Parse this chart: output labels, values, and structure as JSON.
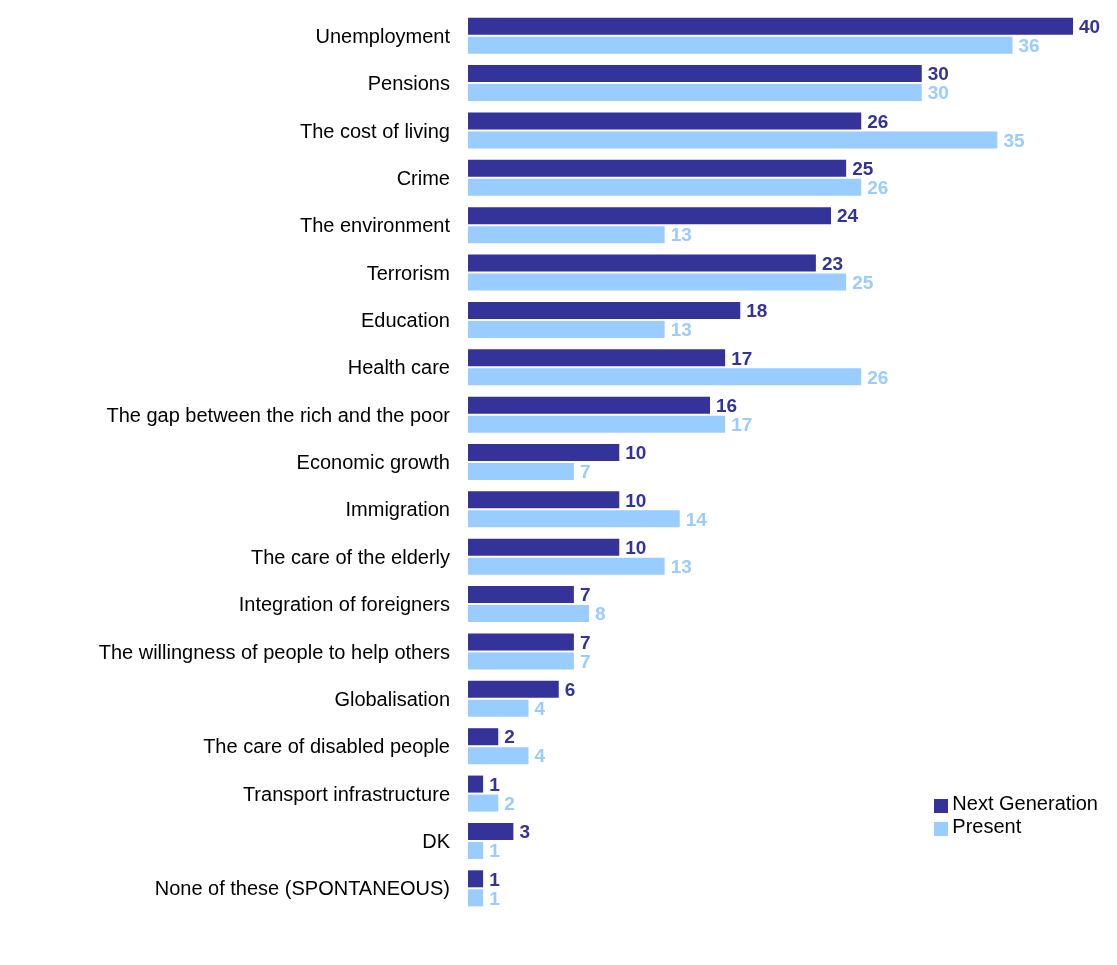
{
  "chart_data": {
    "type": "bar",
    "orientation": "horizontal",
    "data_labels": true,
    "legend": "bottom right",
    "categories": [
      "Unemployment",
      "Pensions",
      "The cost of living",
      "Crime",
      "The environment",
      "Terrorism",
      "Education",
      "Health care",
      "The gap between the rich and the poor",
      "Economic growth",
      "Immigration",
      "The care of the elderly",
      "Integration of foreigners",
      "The willingness of people to help others",
      "Globalisation",
      "The care of disabled people",
      "Transport infrastructure",
      "DK",
      "None of these (SPONTANEOUS)"
    ],
    "series": [
      {
        "name": "Next Generation",
        "color": "#333399",
        "values": [
          40,
          30,
          26,
          25,
          24,
          23,
          18,
          17,
          16,
          10,
          10,
          10,
          7,
          7,
          6,
          2,
          1,
          3,
          1
        ]
      },
      {
        "name": "Present",
        "color": "#99ccff",
        "values": [
          36,
          30,
          35,
          26,
          13,
          25,
          13,
          26,
          17,
          7,
          14,
          13,
          8,
          7,
          4,
          4,
          2,
          1,
          1
        ]
      }
    ]
  }
}
